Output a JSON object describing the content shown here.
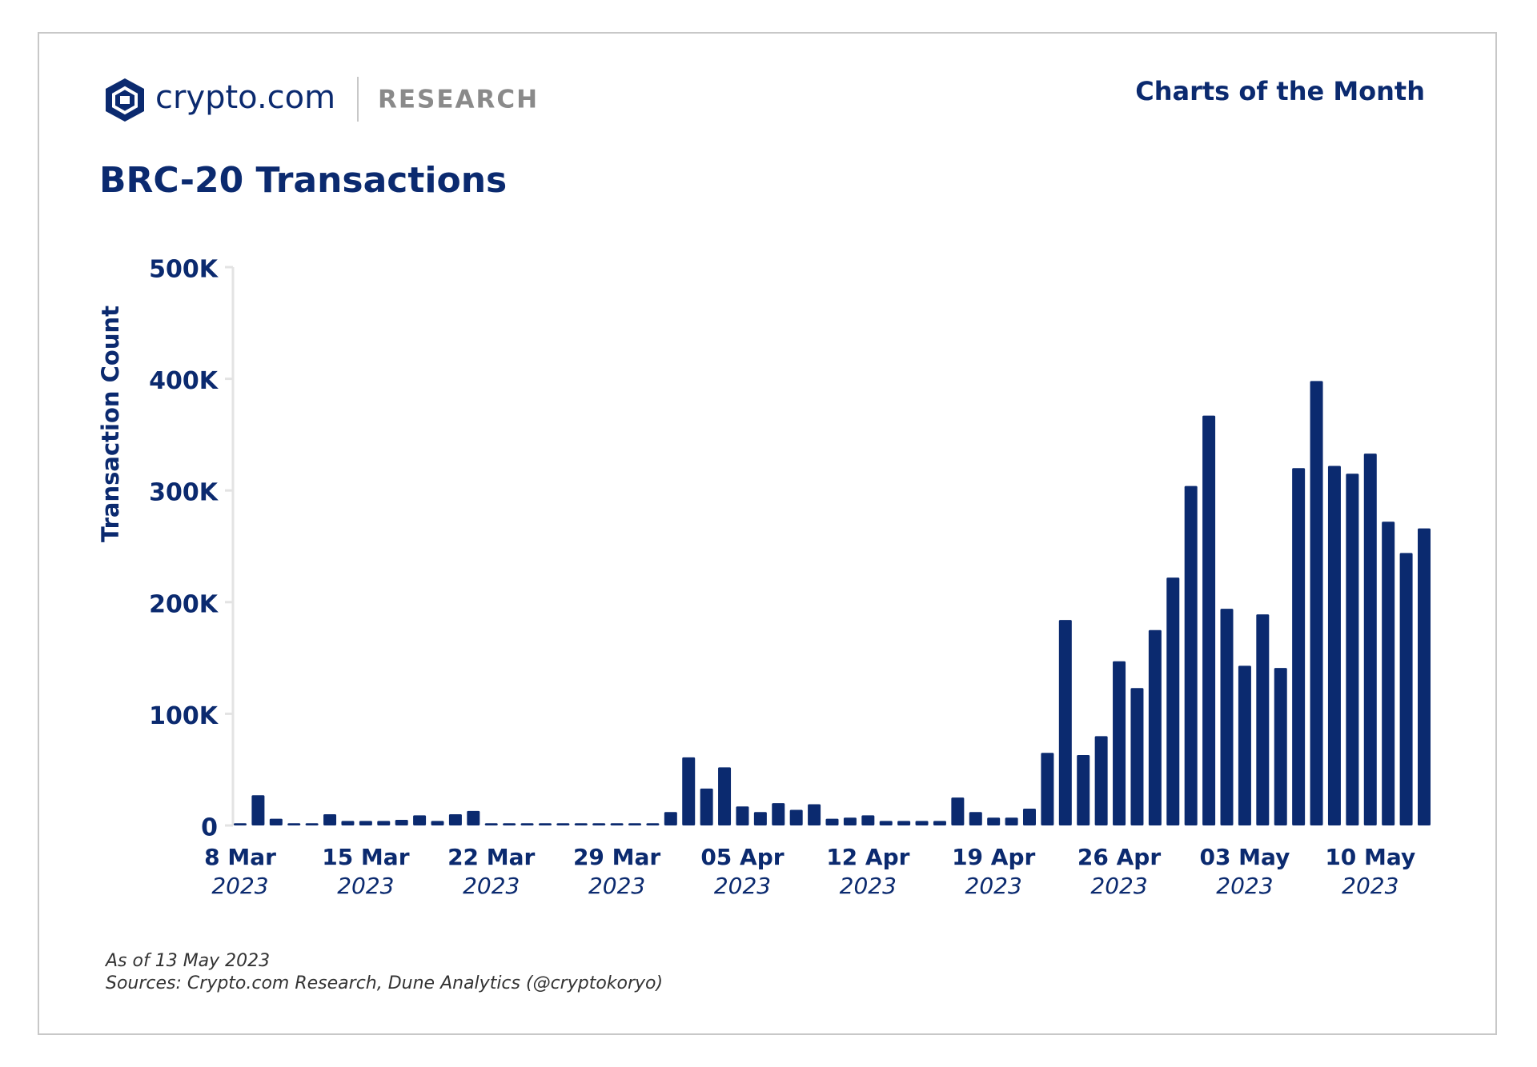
{
  "header": {
    "brand": "crypto.com",
    "section": "RESEARCH",
    "series_name": "Charts of the Month"
  },
  "chart_data": {
    "type": "bar",
    "title": "BRC-20 Transactions",
    "y_label": "Transaction Count",
    "categories": [
      "8 Mar",
      null,
      null,
      null,
      null,
      null,
      null,
      "15 Mar",
      null,
      null,
      null,
      null,
      null,
      null,
      "22 Mar",
      null,
      null,
      null,
      null,
      null,
      null,
      "29 Mar",
      null,
      null,
      null,
      null,
      null,
      null,
      "05 Apr",
      null,
      null,
      null,
      null,
      null,
      null,
      "12 Apr",
      null,
      null,
      null,
      null,
      null,
      null,
      "19 Apr",
      null,
      null,
      null,
      null,
      null,
      null,
      "26 Apr",
      null,
      null,
      null,
      null,
      null,
      null,
      "03 May",
      null,
      null,
      null,
      null,
      null,
      null,
      "10 May",
      null,
      null,
      null
    ],
    "category_years": [
      "2023",
      null,
      null,
      null,
      null,
      null,
      null,
      "2023",
      null,
      null,
      null,
      null,
      null,
      null,
      "2023",
      null,
      null,
      null,
      null,
      null,
      null,
      "2023",
      null,
      null,
      null,
      null,
      null,
      null,
      "2023",
      null,
      null,
      null,
      null,
      null,
      null,
      "2023",
      null,
      null,
      null,
      null,
      null,
      null,
      "2023",
      null,
      null,
      null,
      null,
      null,
      null,
      "2023",
      null,
      null,
      null,
      null,
      null,
      null,
      "2023",
      null,
      null,
      null,
      null,
      null,
      null,
      "2023",
      null,
      null,
      null
    ],
    "values": [
      2000,
      27000,
      6000,
      2000,
      2000,
      10000,
      4000,
      4000,
      4000,
      5000,
      9000,
      4000,
      10000,
      13000,
      2000,
      2000,
      2000,
      2000,
      2000,
      2000,
      2000,
      2000,
      2000,
      2000,
      12000,
      61000,
      33000,
      52000,
      17000,
      12000,
      20000,
      14000,
      19000,
      6000,
      7000,
      9000,
      4000,
      4000,
      4000,
      4000,
      25000,
      12000,
      7000,
      7000,
      15000,
      65000,
      184000,
      63000,
      80000,
      147000,
      123000,
      175000,
      222000,
      304000,
      367000,
      194000,
      143000,
      189000,
      141000,
      320000,
      398000,
      322000,
      315000,
      333000,
      272000,
      244000,
      266000
    ],
    "color": "#0b2a6f",
    "ylim": [
      0,
      500000
    ],
    "yticks": [
      {
        "value": 0,
        "label": "0"
      },
      {
        "value": 100000,
        "label": "100K"
      },
      {
        "value": 200000,
        "label": "200K"
      },
      {
        "value": 300000,
        "label": "300K"
      },
      {
        "value": 400000,
        "label": "400K"
      },
      {
        "value": 500000,
        "label": "500K"
      }
    ],
    "grid": false
  },
  "footer": {
    "as_of": "As of 13 May 2023",
    "sources": "Sources: Crypto.com Research, Dune Analytics (@cryptokoryo)"
  }
}
